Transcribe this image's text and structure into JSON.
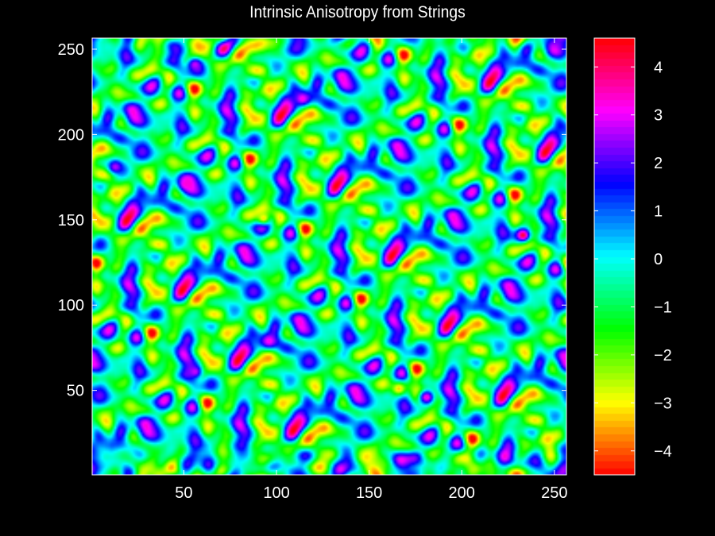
{
  "chart_data": {
    "type": "heatmap",
    "title": "Intrinsic Anisotropy from Strings",
    "xlabel": "",
    "ylabel": "",
    "xlim": [
      1,
      256
    ],
    "ylim": [
      1,
      256
    ],
    "x_ticks": [
      50,
      100,
      150,
      200,
      250
    ],
    "y_ticks": [
      50,
      100,
      150,
      200,
      250
    ],
    "colorbar": {
      "min": -4.5,
      "max": 4.6,
      "ticks": [
        -4,
        -3,
        -2,
        -1,
        0,
        1,
        2,
        3,
        4
      ],
      "tick_labels": [
        "−4",
        "−3",
        "−2",
        "−1",
        "0",
        "1",
        "2",
        "3",
        "4"
      ],
      "colormap": "hsv-like",
      "colors": [
        "#ff0000",
        "#ffff00",
        "#00ff00",
        "#00ffff",
        "#0000ff",
        "#ff00ff",
        "#ff0000"
      ]
    },
    "field_description_values": {
      "background_mean": -0.5,
      "std": 1.5
    },
    "peaks": [
      {
        "x": 232,
        "y": 140,
        "value": 4.3
      },
      {
        "x": 113,
        "y": 220,
        "value": 3.2
      },
      {
        "x": 50,
        "y": 170,
        "value": 3.3
      },
      {
        "x": 95,
        "y": 78,
        "value": 3.2
      },
      {
        "x": 180,
        "y": 45,
        "value": 3.3
      },
      {
        "x": 55,
        "y": 60,
        "value": 2.8
      },
      {
        "x": 12,
        "y": 180,
        "value": 2.7
      },
      {
        "x": 55,
        "y": 240,
        "value": 2.8
      },
      {
        "x": 165,
        "y": 50,
        "value": -3.3
      },
      {
        "x": 92,
        "y": 150,
        "value": -3.1
      }
    ]
  },
  "colors": {
    "background": "#000000",
    "text": "#ffffff"
  }
}
